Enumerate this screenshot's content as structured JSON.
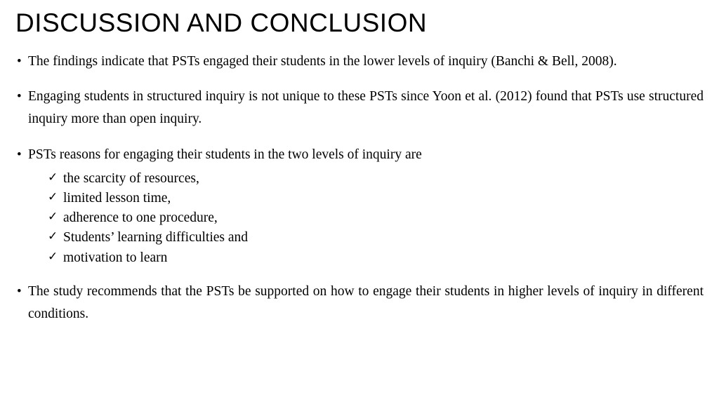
{
  "title": "DISCUSSION AND CONCLUSION",
  "bullets": [
    "The findings indicate that PSTs engaged their students in the lower levels of inquiry (Banchi & Bell, 2008).",
    "Engaging students in structured inquiry is not unique to these PSTs since Yoon et al. (2012) found that PSTs use structured inquiry more than open inquiry.",
    "PSTs reasons for engaging their students in the two levels of inquiry are",
    "The study recommends that the PSTs be supported on how to engage their students in higher levels of inquiry in different conditions."
  ],
  "sublist": [
    "the scarcity of resources,",
    "limited lesson time,",
    "adherence to one procedure,",
    "Students’ learning difficulties and",
    "motivation to learn"
  ],
  "colors": {
    "background": "#ffffff",
    "text": "#000000"
  },
  "typography": {
    "title_font": "Segoe UI Light",
    "title_size_pt": 28,
    "title_weight": 300,
    "body_font": "Times New Roman",
    "body_size_pt": 15,
    "line_height": 1.65
  }
}
